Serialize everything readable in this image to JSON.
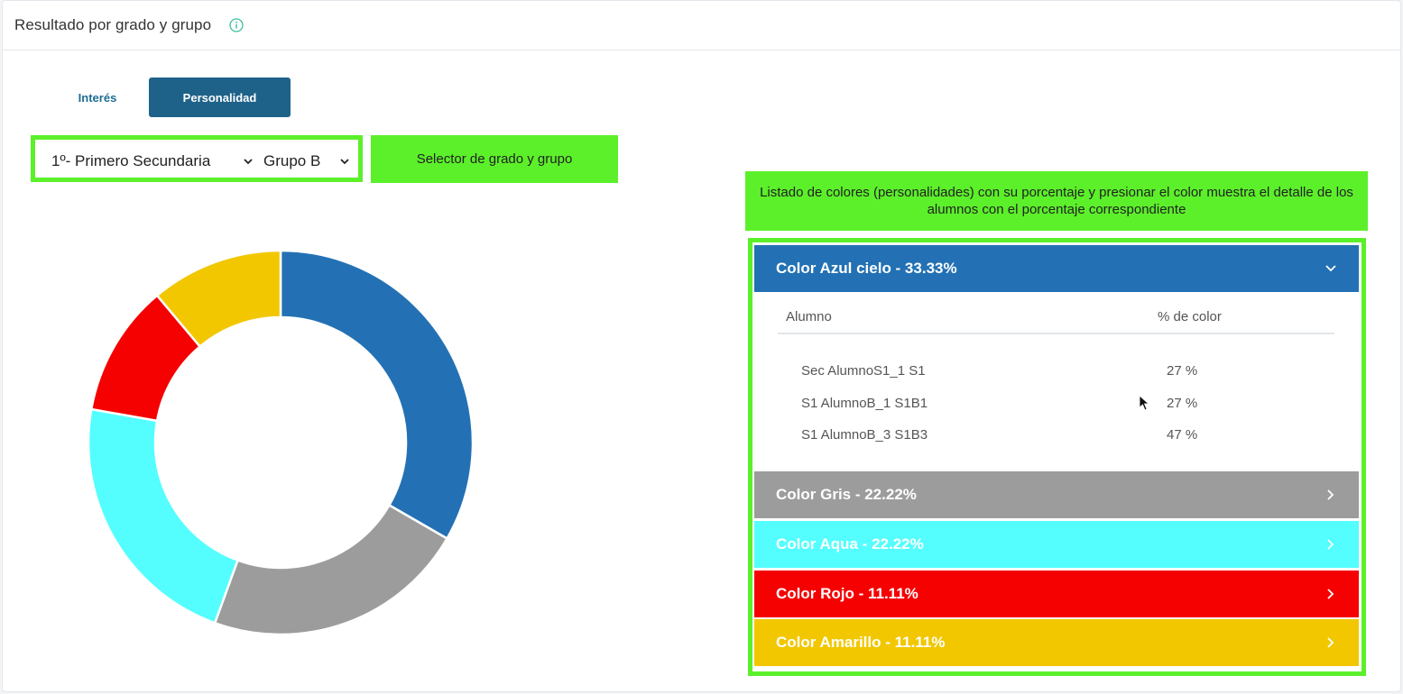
{
  "header": {
    "title": "Resultado por grado y grupo",
    "info_icon": "info-circle-icon"
  },
  "tabs": [
    {
      "label": "Interés",
      "active": false
    },
    {
      "label": "Personalidad",
      "active": true
    }
  ],
  "selectors": {
    "grado": "1º- Primero Secundaria",
    "grupo": "Grupo B"
  },
  "notes": {
    "selector": "Selector de grado y grupo",
    "list": "Listado de colores (personalidades) con su porcentaje y presionar el color muestra el detalle de los alumnos con el porcentaje correspondiente"
  },
  "colors": {
    "accent": "#1f6289",
    "annotation_green": "#5cf02a"
  },
  "accordion": {
    "items": [
      {
        "label": "Color Azul cielo - 33.33%",
        "color": "#2371b4",
        "expanded": true
      },
      {
        "label": "Color Gris - 22.22%",
        "color": "#9c9c9c",
        "expanded": false
      },
      {
        "label": "Color Aqua - 22.22%",
        "color": "#54feff",
        "expanded": false
      },
      {
        "label": "Color Rojo - 11.11%",
        "color": "#f50101",
        "expanded": false
      },
      {
        "label": "Color Amarillo - 11.11%",
        "color": "#f2c700",
        "expanded": false
      }
    ],
    "detail": {
      "col_alumno": "Alumno",
      "col_pct": "% de color",
      "rows": [
        {
          "name": "Sec AlumnoS1_1 S1",
          "pct": "27 %"
        },
        {
          "name": "S1 AlumnoB_1 S1B1",
          "pct": "27 %"
        },
        {
          "name": "S1 AlumnoB_3 S1B3",
          "pct": "47 %"
        }
      ]
    }
  },
  "chart_data": {
    "type": "pie",
    "donut": true,
    "categories": [
      "Azul cielo",
      "Gris",
      "Aqua",
      "Rojo",
      "Amarillo"
    ],
    "values": [
      33.33,
      22.22,
      22.22,
      11.11,
      11.11
    ],
    "colors": [
      "#2371b4",
      "#9c9c9c",
      "#54feff",
      "#f50101",
      "#f2c700"
    ],
    "start": "top",
    "direction": "clockwise"
  }
}
